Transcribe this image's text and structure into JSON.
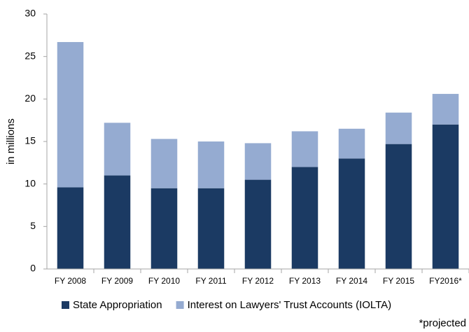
{
  "chart_data": {
    "type": "stacked_bar",
    "y_label": "in millions",
    "categories": [
      "FY 2008",
      "FY 2009",
      "FY 2010",
      "FY 2011",
      "FY 2012",
      "FY 2013",
      "FY 2014",
      "FY 2015",
      "FY2016*"
    ],
    "series": [
      {
        "name": "State Appropriation",
        "color": "#1b3a63",
        "values": [
          9.6,
          11.0,
          9.5,
          9.5,
          10.5,
          12.0,
          13.0,
          14.7,
          17.0
        ]
      },
      {
        "name": "Interest on Lawyers' Trust Accounts (IOLTA)",
        "color": "#95abd1",
        "values": [
          17.1,
          6.2,
          5.8,
          5.5,
          4.3,
          4.2,
          3.5,
          3.7,
          3.6
        ]
      }
    ],
    "ylim": [
      0,
      30
    ],
    "yticks": [
      0,
      5,
      10,
      15,
      20,
      25,
      30
    ],
    "grid": false,
    "note": "*projected"
  }
}
